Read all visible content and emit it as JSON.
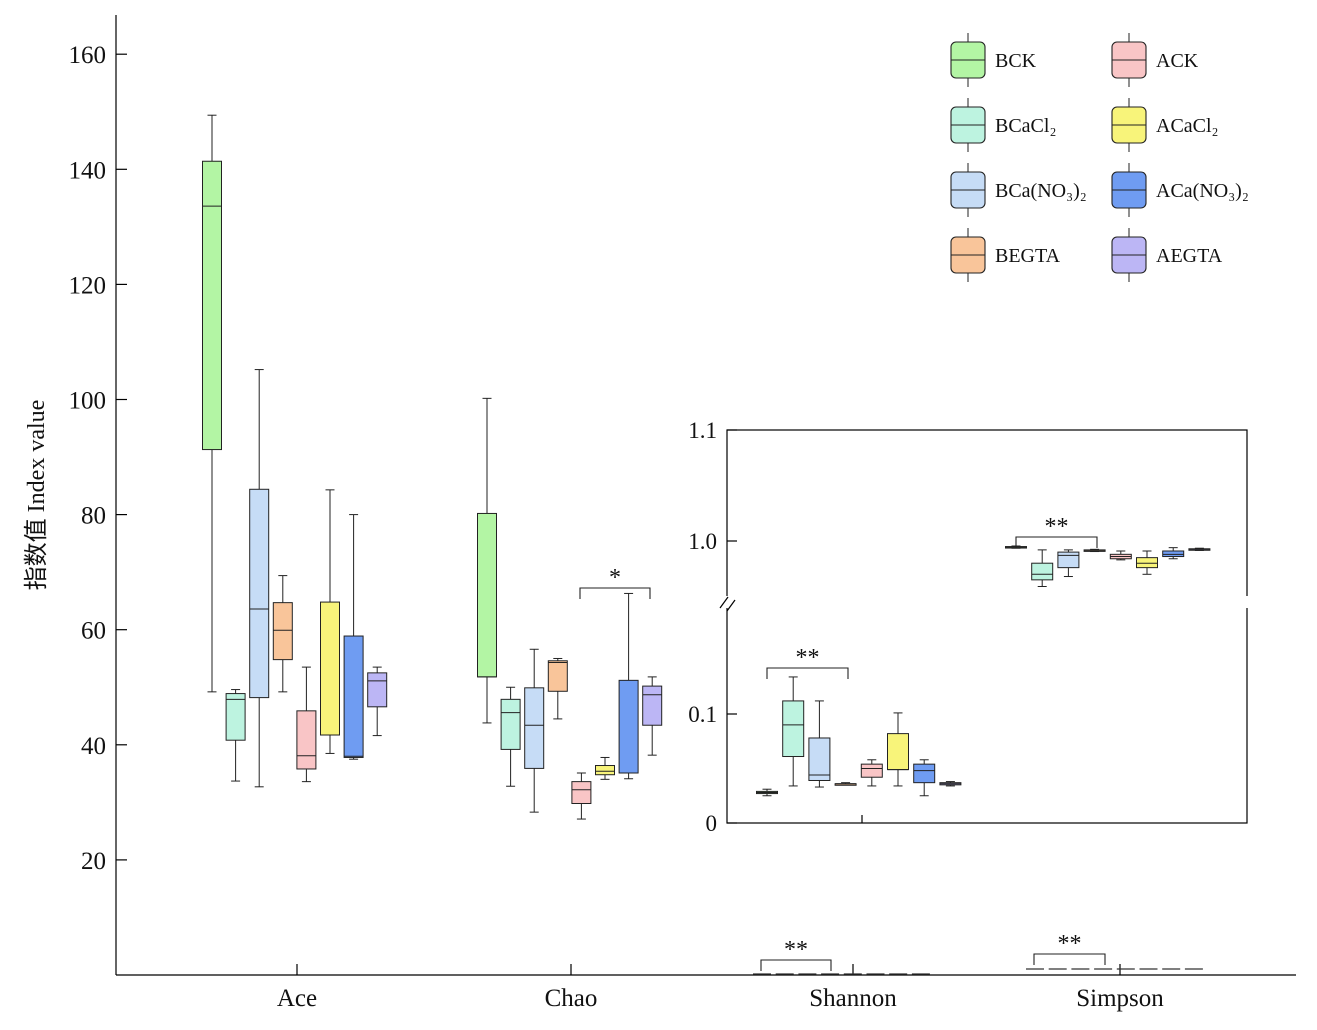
{
  "chart_data": {
    "type": "box",
    "ylabel": "指数值 Index value",
    "ylim": [
      0,
      166
    ],
    "yticks": [
      20,
      40,
      60,
      80,
      100,
      120,
      140,
      160
    ],
    "categories": [
      "Ace",
      "Chao",
      "Shannon",
      "Simpson"
    ],
    "legend_position": "top-right",
    "series": [
      {
        "name": "BCK",
        "color": "#b3f5a4"
      },
      {
        "name": "BCaCl₂",
        "color": "#bdf3e0"
      },
      {
        "name": "BCa(NO₃)₂",
        "color": "#c6dcf6"
      },
      {
        "name": "BEGTA",
        "color": "#f9c59a"
      },
      {
        "name": "ACK",
        "color": "#f9c5c6"
      },
      {
        "name": "ACaCl₂",
        "color": "#f8f47a"
      },
      {
        "name": "ACa(NO₃)₂",
        "color": "#6f9cf2"
      },
      {
        "name": "AEGTA",
        "color": "#bcb6f5"
      }
    ],
    "boxes": {
      "Ace": [
        {
          "min": 49.2,
          "q1": 91.3,
          "median": 133.6,
          "q3": 141.4,
          "max": 149.4
        },
        {
          "min": 33.7,
          "q1": 40.8,
          "median": 47.9,
          "q3": 48.9,
          "max": 49.6
        },
        {
          "min": 32.7,
          "q1": 48.2,
          "median": 63.6,
          "q3": 84.4,
          "max": 105.2
        },
        {
          "min": 49.2,
          "q1": 54.8,
          "median": 59.9,
          "q3": 64.7,
          "max": 69.4
        },
        {
          "min": 33.6,
          "q1": 35.8,
          "median": 38.1,
          "q3": 45.9,
          "max": 53.5
        },
        {
          "min": 38.5,
          "q1": 41.7,
          "median": 41.7,
          "q3": 64.8,
          "max": 84.3
        },
        {
          "min": 37.5,
          "q1": 37.8,
          "median": 38.0,
          "q3": 58.9,
          "max": 80.0
        },
        {
          "min": 41.6,
          "q1": 46.6,
          "median": 51.1,
          "q3": 52.5,
          "max": 53.5
        }
      ],
      "Chao": [
        {
          "min": 43.8,
          "q1": 51.8,
          "median": 51.8,
          "q3": 80.2,
          "max": 100.2
        },
        {
          "min": 32.8,
          "q1": 39.2,
          "median": 45.6,
          "q3": 47.9,
          "max": 50.0
        },
        {
          "min": 28.3,
          "q1": 35.9,
          "median": 43.4,
          "q3": 49.9,
          "max": 56.6
        },
        {
          "min": 44.5,
          "q1": 49.3,
          "median": 54.3,
          "q3": 54.6,
          "max": 55.0
        },
        {
          "min": 27.1,
          "q1": 29.8,
          "median": 32.2,
          "q3": 33.6,
          "max": 35.1
        },
        {
          "min": 34.0,
          "q1": 34.8,
          "median": 35.4,
          "q3": 36.4,
          "max": 37.8
        },
        {
          "min": 34.1,
          "q1": 35.1,
          "median": 35.1,
          "q3": 51.2,
          "max": 66.3
        },
        {
          "min": 38.2,
          "q1": 43.4,
          "median": 48.7,
          "q3": 50.2,
          "max": 51.8
        }
      ]
    },
    "main_annotations": [
      {
        "category": "Chao",
        "text": "*"
      },
      {
        "category": "Shannon",
        "text": "**"
      },
      {
        "category": "Simpson",
        "text": "**"
      }
    ],
    "inset": {
      "yticks": [
        0,
        0.1,
        1.0,
        1.1
      ],
      "boxes": {
        "Shannon": [
          {
            "min": 0.025,
            "q1": 0.027,
            "median": 0.028,
            "q3": 0.029,
            "max": 0.031
          },
          {
            "min": 0.034,
            "q1": 0.061,
            "median": 0.09,
            "q3": 0.112,
            "max": 0.134
          },
          {
            "min": 0.033,
            "q1": 0.039,
            "median": 0.044,
            "q3": 0.078,
            "max": 0.112
          },
          {
            "min": 0.035,
            "q1": 0.036,
            "median": 0.036,
            "q3": 0.036,
            "max": 0.037
          },
          {
            "min": 0.034,
            "q1": 0.042,
            "median": 0.05,
            "q3": 0.054,
            "max": 0.058
          },
          {
            "min": 0.034,
            "q1": 0.049,
            "median": 0.049,
            "q3": 0.082,
            "max": 0.101
          },
          {
            "min": 0.025,
            "q1": 0.037,
            "median": 0.048,
            "q3": 0.054,
            "max": 0.058
          },
          {
            "min": 0.034,
            "q1": 0.035,
            "median": 0.036,
            "q3": 0.037,
            "max": 0.038
          }
        ],
        "Simpson": [
          {
            "min": 0.9935,
            "q1": 0.994,
            "median": 0.9945,
            "q3": 0.995,
            "max": 0.9955
          },
          {
            "min": 0.959,
            "q1": 0.965,
            "median": 0.97,
            "q3": 0.98,
            "max": 0.992
          },
          {
            "min": 0.968,
            "q1": 0.976,
            "median": 0.987,
            "q3": 0.99,
            "max": 0.992
          },
          {
            "min": 0.9905,
            "q1": 0.991,
            "median": 0.9915,
            "q3": 0.992,
            "max": 0.9925
          },
          {
            "min": 0.983,
            "q1": 0.984,
            "median": 0.986,
            "q3": 0.988,
            "max": 0.991
          },
          {
            "min": 0.97,
            "q1": 0.976,
            "median": 0.98,
            "q3": 0.985,
            "max": 0.991
          },
          {
            "min": 0.984,
            "q1": 0.986,
            "median": 0.988,
            "q3": 0.991,
            "max": 0.994
          },
          {
            "min": 0.9915,
            "q1": 0.992,
            "median": 0.9925,
            "q3": 0.993,
            "max": 0.9935
          }
        ]
      },
      "annotations": [
        {
          "category": "Shannon",
          "text": "**"
        },
        {
          "category": "Simpson",
          "text": "**"
        }
      ]
    }
  }
}
